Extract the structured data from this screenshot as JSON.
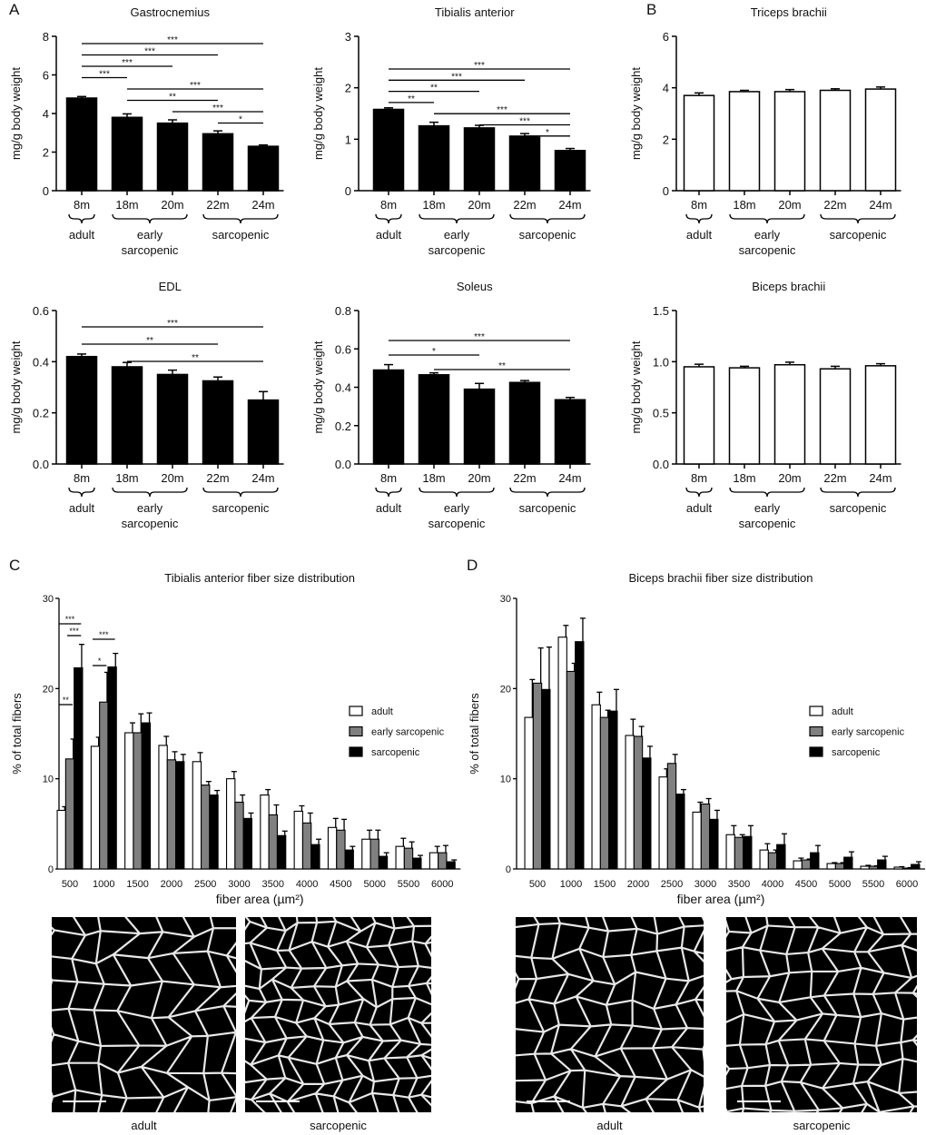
{
  "panel_letters": [
    "A",
    "B",
    "C",
    "D"
  ],
  "group_labels": [
    "adult",
    "early sarcopenic",
    "sarcopenic"
  ],
  "chart_data": [
    {
      "id": "gastrocnemius",
      "type": "bar",
      "title": "Gastrocnemius",
      "ylabel": "mg/g body weight",
      "categories": [
        "8m",
        "18m",
        "20m",
        "22m",
        "24m"
      ],
      "values": [
        4.8,
        3.8,
        3.5,
        2.95,
        2.3
      ],
      "errors": [
        0.08,
        0.18,
        0.17,
        0.15,
        0.07
      ],
      "ylim": [
        0,
        8
      ],
      "yticks": [
        "0",
        "2",
        "4",
        "6",
        "8"
      ],
      "fill": "#000000",
      "significance": [
        {
          "from": 0,
          "to": 4,
          "label": "***"
        },
        {
          "from": 0,
          "to": 3,
          "label": "***"
        },
        {
          "from": 0,
          "to": 2,
          "label": "***"
        },
        {
          "from": 0,
          "to": 1,
          "label": "***"
        },
        {
          "from": 1,
          "to": 4,
          "label": "***"
        },
        {
          "from": 1,
          "to": 3,
          "label": "**"
        },
        {
          "from": 2,
          "to": 4,
          "label": "***"
        },
        {
          "from": 3,
          "to": 4,
          "label": "*"
        }
      ]
    },
    {
      "id": "tibialis-anterior",
      "type": "bar",
      "title": "Tibialis anterior",
      "ylabel": "mg/g body weight",
      "categories": [
        "8m",
        "18m",
        "20m",
        "22m",
        "24m"
      ],
      "values": [
        1.58,
        1.26,
        1.22,
        1.06,
        0.78
      ],
      "errors": [
        0.03,
        0.07,
        0.05,
        0.05,
        0.04
      ],
      "ylim": [
        0,
        3
      ],
      "yticks": [
        "0",
        "1",
        "2",
        "3"
      ],
      "fill": "#000000",
      "significance": [
        {
          "from": 0,
          "to": 4,
          "label": "***"
        },
        {
          "from": 0,
          "to": 3,
          "label": "***"
        },
        {
          "from": 0,
          "to": 2,
          "label": "**"
        },
        {
          "from": 0,
          "to": 1,
          "label": "**"
        },
        {
          "from": 1,
          "to": 4,
          "label": "***"
        },
        {
          "from": 2,
          "to": 4,
          "label": "***"
        },
        {
          "from": 3,
          "to": 4,
          "label": "*"
        }
      ]
    },
    {
      "id": "triceps-brachii",
      "type": "bar",
      "title": "Triceps brachii",
      "ylabel": "mg/g body weight",
      "categories": [
        "8m",
        "18m",
        "20m",
        "22m",
        "24m"
      ],
      "values": [
        3.7,
        3.85,
        3.85,
        3.9,
        3.95
      ],
      "errors": [
        0.1,
        0.05,
        0.08,
        0.06,
        0.08
      ],
      "ylim": [
        0,
        6
      ],
      "yticks": [
        "0",
        "2",
        "4",
        "6"
      ],
      "fill": "#ffffff",
      "significance": []
    },
    {
      "id": "edl",
      "type": "bar",
      "title": "EDL",
      "ylabel": "mg/g body weight",
      "categories": [
        "8m",
        "18m",
        "20m",
        "22m",
        "24m"
      ],
      "values": [
        0.42,
        0.38,
        0.35,
        0.325,
        0.25
      ],
      "errors": [
        0.01,
        0.017,
        0.017,
        0.015,
        0.033
      ],
      "ylim": [
        0,
        0.6
      ],
      "yticks": [
        "0.0",
        "0.2",
        "0.4",
        "0.6"
      ],
      "fill": "#000000",
      "significance": [
        {
          "from": 0,
          "to": 4,
          "label": "***"
        },
        {
          "from": 0,
          "to": 3,
          "label": "**"
        },
        {
          "from": 1,
          "to": 4,
          "label": "**"
        }
      ]
    },
    {
      "id": "soleus",
      "type": "bar",
      "title": "Soleus",
      "ylabel": "mg/g body weight",
      "categories": [
        "8m",
        "18m",
        "20m",
        "22m",
        "24m"
      ],
      "values": [
        0.49,
        0.465,
        0.39,
        0.425,
        0.335
      ],
      "errors": [
        0.028,
        0.01,
        0.03,
        0.01,
        0.012
      ],
      "ylim": [
        0,
        0.8
      ],
      "yticks": [
        "0.0",
        "0.2",
        "0.4",
        "0.6",
        "0.8"
      ],
      "fill": "#000000",
      "significance": [
        {
          "from": 0,
          "to": 4,
          "label": "***"
        },
        {
          "from": 0,
          "to": 2,
          "label": "*"
        },
        {
          "from": 1,
          "to": 4,
          "label": "**"
        }
      ]
    },
    {
      "id": "biceps-brachii",
      "type": "bar",
      "title": "Biceps brachii",
      "ylabel": "mg/g body weight",
      "categories": [
        "8m",
        "18m",
        "20m",
        "22m",
        "24m"
      ],
      "values": [
        0.95,
        0.94,
        0.97,
        0.93,
        0.96
      ],
      "errors": [
        0.025,
        0.015,
        0.025,
        0.025,
        0.02
      ],
      "ylim": [
        0,
        1.5
      ],
      "yticks": [
        "0.0",
        "0.5",
        "1.0",
        "1.5"
      ],
      "fill": "#ffffff",
      "significance": []
    },
    {
      "id": "ta-fiber-distribution",
      "type": "bar",
      "title": "Tibialis anterior fiber size distribution",
      "ylabel": "% of total fibers",
      "xlabel": "fiber area (µm²)",
      "categories": [
        "500",
        "1000",
        "1500",
        "2000",
        "2500",
        "3000",
        "3500",
        "4000",
        "4500",
        "5000",
        "5500",
        "6000"
      ],
      "ylim": [
        0,
        30
      ],
      "yticks": [
        "0",
        "10",
        "20",
        "30"
      ],
      "legend": "right",
      "series": [
        {
          "name": "adult",
          "color": "#ffffff",
          "values": [
            6.5,
            13.6,
            15.1,
            13.7,
            11.9,
            10.0,
            8.2,
            6.4,
            4.6,
            3.3,
            2.5,
            1.8
          ],
          "errors": [
            0.4,
            1.0,
            1.1,
            1.0,
            1.0,
            0.8,
            0.6,
            0.6,
            1.0,
            1.0,
            0.9,
            0.7
          ]
        },
        {
          "name": "early sarcopenic",
          "color": "#808080",
          "values": [
            12.2,
            18.5,
            15.1,
            12.1,
            9.3,
            7.4,
            6.0,
            5.1,
            4.3,
            3.3,
            2.3,
            1.8
          ],
          "errors": [
            2.2,
            3.3,
            2.1,
            0.9,
            0.4,
            0.8,
            1.1,
            1.1,
            1.2,
            1.0,
            0.7,
            0.8
          ]
        },
        {
          "name": "sarcopenic",
          "color": "#000000",
          "values": [
            22.3,
            22.4,
            16.2,
            11.9,
            8.2,
            5.6,
            3.7,
            2.7,
            2.1,
            1.4,
            1.2,
            0.8
          ],
          "errors": [
            2.6,
            1.5,
            1.1,
            0.8,
            0.5,
            0.6,
            0.5,
            0.6,
            0.4,
            0.4,
            0.3,
            0.2
          ]
        }
      ],
      "significance": [
        {
          "category": 0,
          "from": 0,
          "to": 2,
          "label": "***"
        },
        {
          "category": 0,
          "from": 1,
          "to": 2,
          "label": "***"
        },
        {
          "category": 0,
          "from": 0,
          "to": 1,
          "label": "**"
        },
        {
          "category": 1,
          "from": 0,
          "to": 2,
          "label": "***"
        },
        {
          "category": 1,
          "from": 0,
          "to": 1,
          "label": "*"
        }
      ]
    },
    {
      "id": "bb-fiber-distribution",
      "type": "bar",
      "title": "Biceps brachii fiber size distribution",
      "ylabel": "% of total fibers",
      "xlabel": "fiber area (µm²)",
      "categories": [
        "500",
        "1000",
        "1500",
        "2000",
        "2500",
        "3000",
        "3500",
        "4000",
        "4500",
        "5000",
        "5500",
        "6000"
      ],
      "ylim": [
        0,
        30
      ],
      "yticks": [
        "0",
        "10",
        "20",
        "30"
      ],
      "legend": "right",
      "series": [
        {
          "name": "adult",
          "color": "#ffffff",
          "values": [
            16.8,
            25.7,
            18.2,
            14.8,
            10.2,
            6.3,
            3.8,
            2.1,
            0.9,
            0.6,
            0.3,
            0.2
          ],
          "errors": [
            4.2,
            1.3,
            1.4,
            1.8,
            0.9,
            1.1,
            1.0,
            0.7,
            0.3,
            0.1,
            0.1,
            0.05
          ]
        },
        {
          "name": "early sarcopenic",
          "color": "#808080",
          "values": [
            20.6,
            21.9,
            16.8,
            14.7,
            11.7,
            7.2,
            3.5,
            1.8,
            1.0,
            0.6,
            0.3,
            0.1
          ],
          "errors": [
            3.9,
            0.9,
            0.8,
            1.1,
            1.0,
            0.6,
            0.3,
            0.3,
            0.1,
            0.1,
            0.05,
            0.05
          ]
        },
        {
          "name": "sarcopenic",
          "color": "#000000",
          "values": [
            19.9,
            25.2,
            17.5,
            12.3,
            8.3,
            5.5,
            3.6,
            2.7,
            1.8,
            1.3,
            1.0,
            0.5
          ],
          "errors": [
            4.7,
            2.6,
            2.4,
            1.3,
            0.5,
            1.0,
            1.2,
            1.2,
            0.8,
            0.6,
            0.4,
            0.3
          ]
        }
      ],
      "significance": []
    }
  ],
  "micrographs": [
    {
      "caption": "adult",
      "muscle": "tibialis anterior"
    },
    {
      "caption": "sarcopenic",
      "muscle": "tibialis anterior"
    },
    {
      "caption": "adult",
      "muscle": "biceps brachii"
    },
    {
      "caption": "sarcopenic",
      "muscle": "biceps brachii"
    }
  ]
}
